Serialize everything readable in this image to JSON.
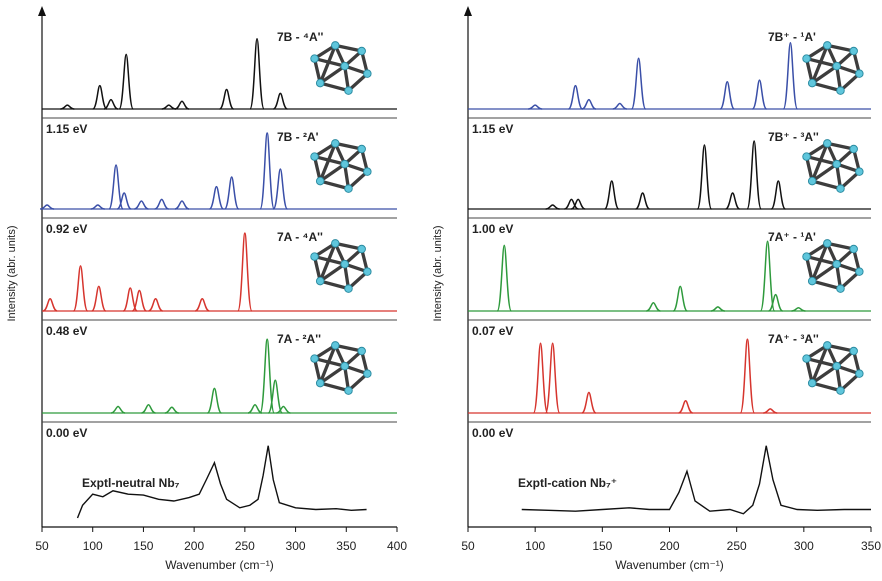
{
  "chart_data": [
    {
      "type": "line",
      "x_label": "Wavenumber (cm⁻¹)",
      "y_label": "Intensity (abr. units)",
      "xlim": [
        50,
        400
      ],
      "xticks": [
        50,
        100,
        150,
        200,
        250,
        300,
        350,
        400
      ],
      "ylim": [
        0,
        1
      ],
      "series": [
        {
          "name": "7B - ⁴A''",
          "color": "#111111",
          "type": "peaks",
          "x": [
            75,
            107,
            118,
            133,
            175,
            188,
            232,
            262,
            285
          ],
          "values": [
            0.05,
            0.3,
            0.12,
            0.7,
            0.05,
            0.1,
            0.25,
            0.9,
            0.2
          ]
        },
        {
          "name": "7B - ²A'",
          "energy": "1.15 eV",
          "color": "#3a4fa8",
          "type": "peaks",
          "x": [
            55,
            105,
            123,
            131,
            148,
            168,
            188,
            222,
            237,
            272,
            285
          ],
          "values": [
            0.05,
            0.05,
            0.55,
            0.2,
            0.1,
            0.12,
            0.1,
            0.28,
            0.4,
            0.95,
            0.5
          ]
        },
        {
          "name": "7A - ⁴A''",
          "energy": "0.92 eV",
          "color": "#d6352e",
          "type": "peaks",
          "x": [
            58,
            88,
            106,
            137,
            146,
            162,
            208,
            250
          ],
          "values": [
            0.15,
            0.55,
            0.3,
            0.28,
            0.25,
            0.15,
            0.15,
            0.95
          ]
        },
        {
          "name": "7A - ²A''",
          "energy": "0.48 eV",
          "color": "#2e9a3c",
          "type": "peaks",
          "x": [
            125,
            155,
            178,
            220,
            260,
            272,
            280,
            288
          ],
          "values": [
            0.08,
            0.1,
            0.07,
            0.3,
            0.1,
            0.9,
            0.4,
            0.08
          ]
        },
        {
          "name": "Exptl-neutral Nb₇",
          "energy": "0.00 eV",
          "color": "#111111",
          "type": "line",
          "x": [
            85,
            90,
            100,
            110,
            120,
            135,
            150,
            165,
            180,
            195,
            205,
            212,
            220,
            226,
            232,
            245,
            255,
            263,
            268,
            273,
            278,
            284,
            300,
            320,
            340,
            355,
            370
          ],
          "values": [
            0.0,
            0.15,
            0.28,
            0.25,
            0.32,
            0.28,
            0.27,
            0.22,
            0.2,
            0.24,
            0.28,
            0.45,
            0.65,
            0.4,
            0.22,
            0.12,
            0.15,
            0.22,
            0.5,
            0.85,
            0.45,
            0.18,
            0.12,
            0.1,
            0.11,
            0.09,
            0.1
          ]
        }
      ]
    },
    {
      "type": "line",
      "x_label": "Wavenumber (cm⁻¹)",
      "y_label": "Intensity (abr. units)",
      "xlim": [
        50,
        350
      ],
      "xticks": [
        50,
        100,
        150,
        200,
        250,
        300,
        350
      ],
      "ylim": [
        0,
        1
      ],
      "series": [
        {
          "name": "7B⁺ - ¹A'",
          "color": "#3a4fa8",
          "type": "peaks",
          "x": [
            100,
            130,
            140,
            163,
            177,
            243,
            267,
            290
          ],
          "values": [
            0.05,
            0.3,
            0.12,
            0.07,
            0.65,
            0.35,
            0.37,
            0.85
          ]
        },
        {
          "name": "7B⁺ - ³A''",
          "energy": "1.15 eV",
          "color": "#111111",
          "type": "peaks",
          "x": [
            113,
            127,
            132,
            157,
            180,
            226,
            247,
            263,
            281
          ],
          "values": [
            0.05,
            0.12,
            0.12,
            0.35,
            0.2,
            0.8,
            0.2,
            0.85,
            0.35
          ]
        },
        {
          "name": "7A⁺ - ¹A'",
          "energy": "1.00 eV",
          "color": "#2e9a3c",
          "type": "peaks",
          "x": [
            77,
            188,
            208,
            236,
            273,
            279,
            296
          ],
          "values": [
            0.8,
            0.1,
            0.3,
            0.05,
            0.85,
            0.2,
            0.04
          ]
        },
        {
          "name": "7A⁺ - ³A''",
          "energy": "0.07 eV",
          "color": "#d6352e",
          "type": "peaks",
          "x": [
            104,
            113,
            140,
            212,
            258,
            275
          ],
          "values": [
            0.85,
            0.85,
            0.25,
            0.15,
            0.9,
            0.05
          ]
        },
        {
          "name": "Exptl-cation Nb₇⁺",
          "energy": "0.00 eV",
          "color": "#111111",
          "type": "line",
          "x": [
            90,
            110,
            130,
            150,
            170,
            185,
            200,
            207,
            213,
            219,
            230,
            245,
            255,
            262,
            267,
            272,
            277,
            283,
            295,
            310,
            330,
            350
          ],
          "values": [
            0.1,
            0.09,
            0.08,
            0.1,
            0.12,
            0.1,
            0.1,
            0.3,
            0.55,
            0.2,
            0.08,
            0.1,
            0.05,
            0.15,
            0.4,
            0.85,
            0.45,
            0.15,
            0.1,
            0.09,
            0.1,
            0.1
          ]
        }
      ]
    }
  ]
}
